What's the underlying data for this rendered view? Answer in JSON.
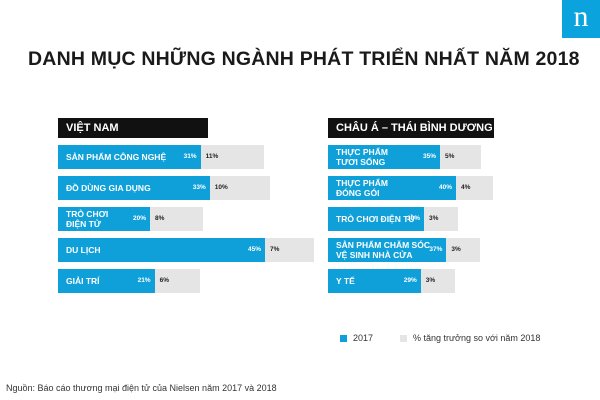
{
  "logo": "n",
  "colors": {
    "accent": "#0fa0da",
    "gray": "#e5e5e5",
    "header": "#111111"
  },
  "chart_data": {
    "type": "bar",
    "title": "DANH MỤC NHỮNG NGÀNH PHÁT TRIỂN NHẤT NĂM 2018",
    "legend": {
      "placement": "bottom-right",
      "items": [
        "2017",
        "% tăng trưởng so với năm 2018"
      ]
    },
    "panels": [
      {
        "header": "VIỆT NAM",
        "rows": [
          {
            "category": [
              "SẢN PHẨM CÔNG NGHỆ"
            ],
            "value_2017": 31,
            "growth": 11,
            "label_2017": "31%",
            "label_growth": "11%"
          },
          {
            "category": [
              "ĐỒ DÙNG GIA DỤNG"
            ],
            "value_2017": 33,
            "growth": 10,
            "label_2017": "33%",
            "label_growth": "10%"
          },
          {
            "category": [
              "TRÒ CHƠI",
              "ĐIỆN TỬ"
            ],
            "value_2017": 20,
            "growth": 8,
            "label_2017": "20%",
            "label_growth": "8%"
          },
          {
            "category": [
              "DU LỊCH"
            ],
            "value_2017": 45,
            "growth": 7,
            "label_2017": "45%",
            "label_growth": "7%"
          },
          {
            "category": [
              "GIẢI TRÍ"
            ],
            "value_2017": 21,
            "growth": 6,
            "label_2017": "21%",
            "label_growth": "6%"
          }
        ]
      },
      {
        "header": "CHÂU Á – THÁI BÌNH DƯƠNG",
        "rows": [
          {
            "category": [
              "THỰC PHẨM",
              "TƯƠI SỐNG"
            ],
            "value_2017": 35,
            "growth": 5,
            "label_2017": "35%",
            "label_growth": "5%"
          },
          {
            "category": [
              "THỰC PHẨM",
              "ĐÓNG GÓI"
            ],
            "value_2017": 40,
            "growth": 4,
            "label_2017": "40%",
            "label_growth": "4%"
          },
          {
            "category": [
              "TRÒ CHƠI ĐIỆN TỬ"
            ],
            "value_2017": 30,
            "growth": 3,
            "label_2017": "30%",
            "label_growth": "3%"
          },
          {
            "category": [
              "SẢN PHẨM CHĂM SÓC",
              "VỆ SINH NHÀ CỬA"
            ],
            "value_2017": 37,
            "growth": 3,
            "label_2017": "37%",
            "label_growth": "3%"
          },
          {
            "category": [
              "Y TẾ"
            ],
            "value_2017": 29,
            "growth": 3,
            "label_2017": "29%",
            "label_growth": "3%"
          }
        ]
      }
    ]
  },
  "source": "Nguồn: Báo cáo thương mại điện tử của Nielsen năm 2017 và 2018"
}
